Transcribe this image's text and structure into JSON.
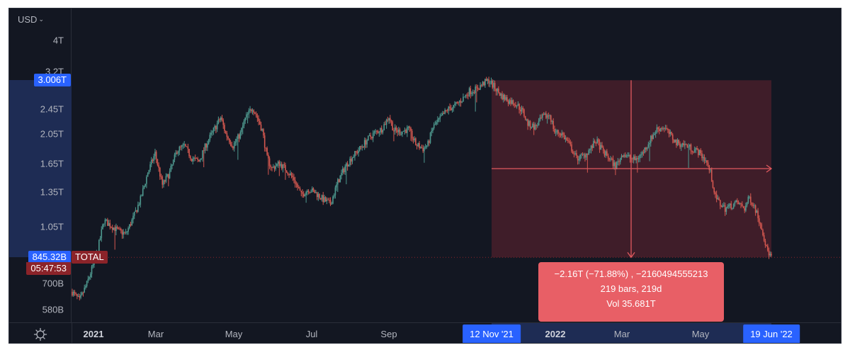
{
  "colors": {
    "background": "#131722",
    "up": "#4e998f",
    "down": "#d3574f",
    "axis_text": "#b2b5be",
    "axis_highlight": "#1e2c54",
    "blue_tag": "#2962ff",
    "measure_fill": "rgba(242, 54, 69, 0.2)",
    "measure_line": "#e05a5f",
    "measure_box": "#e85f66",
    "total_tag": "#8b2329",
    "countdown_tag": "#8b2329"
  },
  "price_axis": {
    "currency_label": "USD",
    "currency_chevron": "⌄",
    "ticks": [
      {
        "label": "4T",
        "value": 4000000000000
      },
      {
        "label": "3.2T",
        "value": 3200000000000
      },
      {
        "label": "2.45T",
        "value": 2450000000000
      },
      {
        "label": "2.05T",
        "value": 2050000000000
      },
      {
        "label": "1.65T",
        "value": 1650000000000
      },
      {
        "label": "1.35T",
        "value": 1350000000000
      },
      {
        "label": "1.05T",
        "value": 1050000000000
      },
      {
        "label": "700B",
        "value": 700000000000
      },
      {
        "label": "580B",
        "value": 580000000000
      }
    ],
    "measure_top_tag": "3.006T",
    "last_price_tag": "845.32B",
    "countdown_tag": "05:47:53"
  },
  "time_axis": {
    "labels": [
      {
        "label": "2021",
        "x": 120,
        "year": true
      },
      {
        "label": "Mar",
        "x": 220,
        "year": false
      },
      {
        "label": "May",
        "x": 330,
        "year": false
      },
      {
        "label": "Jul",
        "x": 440,
        "year": false
      },
      {
        "label": "Sep",
        "x": 549,
        "year": false
      },
      {
        "label": "2022",
        "x": 772,
        "year": true
      },
      {
        "label": "Mar",
        "x": 878,
        "year": false
      },
      {
        "label": "May",
        "x": 989,
        "year": false
      }
    ],
    "range_start_tag": "12 Nov '21",
    "range_end_tag": "19 Jun '22",
    "settings_icon": "sun-gear"
  },
  "symbol_tag": "TOTAL",
  "measure_tooltip": {
    "line1": "−2.16T (−71.88%) , −2160494555213",
    "line2": "219 bars, 219d",
    "line3": "Vol 35.681T"
  },
  "chart_data": {
    "type": "candlestick",
    "title": "TOTAL",
    "currency": "USD",
    "scale": "log",
    "xlabel": "",
    "ylabel": "USD",
    "ylim": [
      550000000000,
      4500000000000
    ],
    "x_range": [
      "2021-01-01",
      "2022-06-19"
    ],
    "x_ticks": [
      "2021",
      "Mar",
      "May",
      "Jul",
      "Sep",
      "2022",
      "Mar",
      "May"
    ],
    "y_ticks": [
      "580B",
      "700B",
      "1.05T",
      "1.35T",
      "1.65T",
      "2.05T",
      "2.45T",
      "3.2T",
      "4T"
    ],
    "last_price": "845.32B",
    "measurement": {
      "from_date": "12 Nov '21",
      "to_date": "19 Jun '22",
      "from_price": "3.006T",
      "to_price": "845.32B",
      "change": "−2.16T",
      "change_pct": "−71.88%",
      "change_abs": -2160494555213,
      "bars": 219,
      "days": "219d",
      "volume": "35.681T"
    },
    "close_path_anchors_T": [
      [
        0,
        0.66
      ],
      [
        6,
        0.62
      ],
      [
        12,
        0.7
      ],
      [
        20,
        0.86
      ],
      [
        26,
        1.1
      ],
      [
        32,
        1.06
      ],
      [
        38,
        1.02
      ],
      [
        44,
        1.0
      ],
      [
        50,
        1.12
      ],
      [
        56,
        1.28
      ],
      [
        62,
        1.55
      ],
      [
        68,
        1.78
      ],
      [
        74,
        1.42
      ],
      [
        80,
        1.55
      ],
      [
        86,
        1.82
      ],
      [
        92,
        1.88
      ],
      [
        98,
        1.72
      ],
      [
        104,
        1.68
      ],
      [
        110,
        1.9
      ],
      [
        116,
        2.1
      ],
      [
        122,
        2.3
      ],
      [
        126,
        2.05
      ],
      [
        132,
        1.88
      ],
      [
        138,
        2.05
      ],
      [
        142,
        2.28
      ],
      [
        148,
        2.48
      ],
      [
        152,
        2.3
      ],
      [
        156,
        2.1
      ],
      [
        160,
        1.72
      ],
      [
        164,
        1.6
      ],
      [
        170,
        1.66
      ],
      [
        176,
        1.58
      ],
      [
        182,
        1.48
      ],
      [
        188,
        1.32
      ],
      [
        194,
        1.38
      ],
      [
        200,
        1.34
      ],
      [
        206,
        1.28
      ],
      [
        212,
        1.24
      ],
      [
        218,
        1.45
      ],
      [
        224,
        1.62
      ],
      [
        230,
        1.74
      ],
      [
        236,
        1.84
      ],
      [
        242,
        1.96
      ],
      [
        248,
        2.06
      ],
      [
        254,
        2.12
      ],
      [
        260,
        2.32
      ],
      [
        264,
        2.1
      ],
      [
        270,
        2.08
      ],
      [
        276,
        2.12
      ],
      [
        282,
        1.9
      ],
      [
        288,
        1.84
      ],
      [
        292,
        1.9
      ],
      [
        296,
        2.14
      ],
      [
        302,
        2.28
      ],
      [
        308,
        2.44
      ],
      [
        314,
        2.5
      ],
      [
        320,
        2.62
      ],
      [
        326,
        2.78
      ],
      [
        332,
        2.82
      ],
      [
        338,
        2.95
      ],
      [
        342,
        3.0
      ],
      [
        346,
        2.88
      ],
      [
        352,
        2.7
      ],
      [
        358,
        2.6
      ],
      [
        364,
        2.55
      ],
      [
        370,
        2.4
      ],
      [
        374,
        2.2
      ],
      [
        380,
        2.15
      ],
      [
        386,
        2.3
      ],
      [
        392,
        2.35
      ],
      [
        396,
        2.08
      ],
      [
        402,
        2.05
      ],
      [
        408,
        1.9
      ],
      [
        414,
        1.72
      ],
      [
        420,
        1.75
      ],
      [
        426,
        1.85
      ],
      [
        430,
        1.95
      ],
      [
        436,
        1.8
      ],
      [
        442,
        1.7
      ],
      [
        446,
        1.62
      ],
      [
        452,
        1.78
      ],
      [
        458,
        1.72
      ],
      [
        462,
        1.7
      ],
      [
        468,
        1.78
      ],
      [
        474,
        1.95
      ],
      [
        480,
        2.12
      ],
      [
        486,
        2.15
      ],
      [
        490,
        2.05
      ],
      [
        496,
        1.92
      ],
      [
        502,
        1.9
      ],
      [
        508,
        1.85
      ],
      [
        514,
        1.8
      ],
      [
        520,
        1.7
      ],
      [
        524,
        1.55
      ],
      [
        528,
        1.3
      ],
      [
        532,
        1.24
      ],
      [
        536,
        1.2
      ],
      [
        540,
        1.22
      ],
      [
        546,
        1.25
      ],
      [
        552,
        1.2
      ],
      [
        556,
        1.3
      ],
      [
        560,
        1.22
      ],
      [
        566,
        1.05
      ],
      [
        570,
        0.9
      ],
      [
        574,
        0.845
      ]
    ]
  }
}
